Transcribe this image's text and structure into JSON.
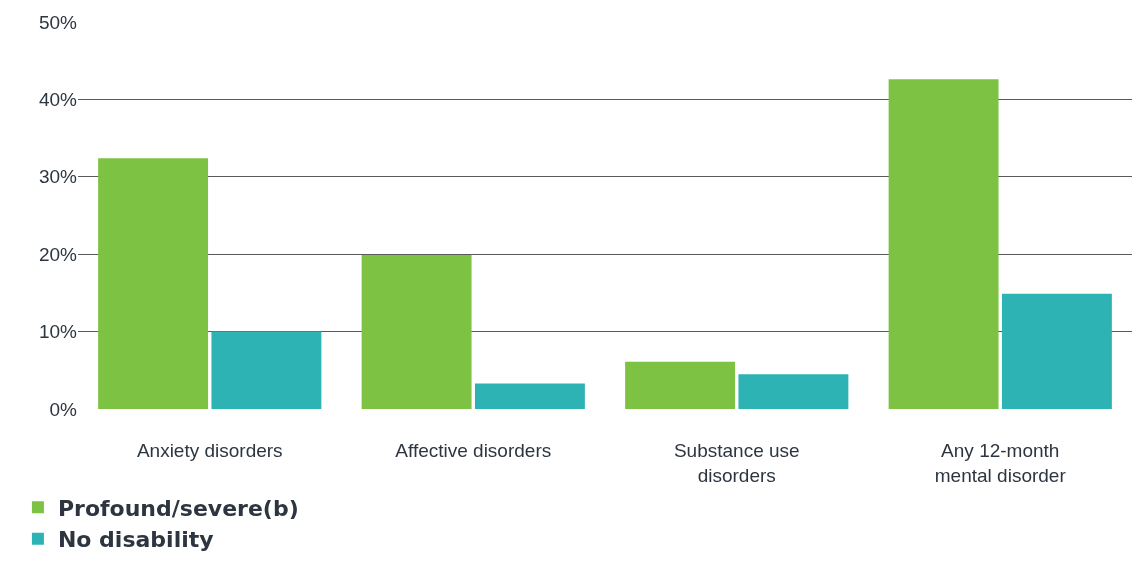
{
  "chart_data": {
    "type": "bar",
    "categories": [
      "Anxiety disorders",
      "Affective disorders",
      "Substance use disorders",
      "Any 12-month mental disorder"
    ],
    "series": [
      {
        "name": "Profound/severe(b)",
        "color": "#7dc242",
        "values": [
          32.4,
          19.9,
          6.1,
          42.6
        ]
      },
      {
        "name": "No disability",
        "color": "#2eb3b5",
        "values": [
          10.0,
          3.3,
          4.5,
          14.9
        ]
      }
    ],
    "ylim": [
      0,
      50
    ],
    "yticks": [
      {
        "value": 0,
        "label": "0%"
      },
      {
        "value": 10,
        "label": "10%"
      },
      {
        "value": 20,
        "label": "20%"
      },
      {
        "value": 30,
        "label": "30%"
      },
      {
        "value": 40,
        "label": "40%"
      },
      {
        "value": 50,
        "label": "50%"
      }
    ],
    "grid": "y",
    "legend": "bottom left"
  }
}
